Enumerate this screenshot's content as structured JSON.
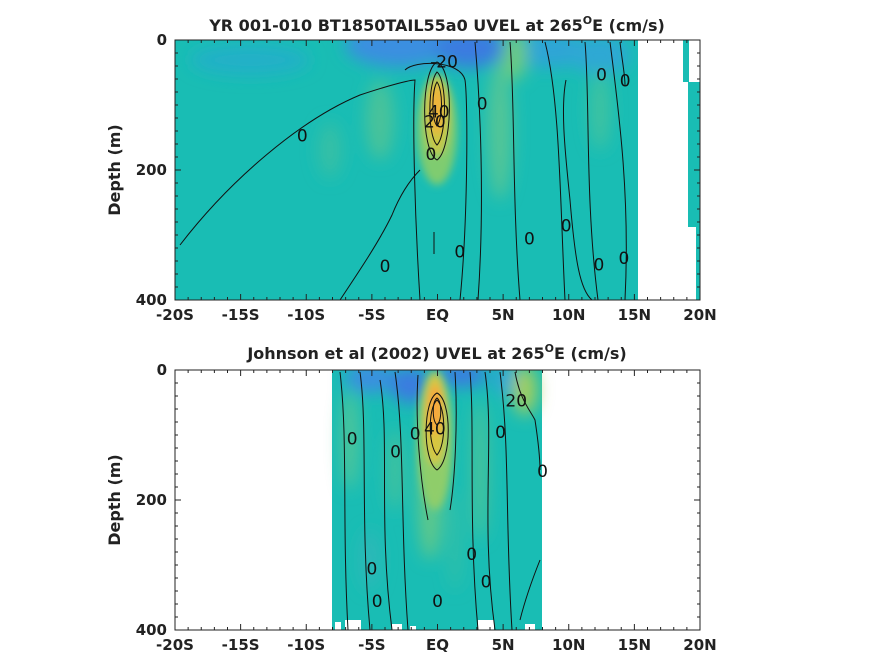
{
  "chart_data": [
    {
      "type": "contour",
      "title": "YR 001-010 BT1850TAIL55a0 UVEL at 265",
      "title_superscript": "O",
      "title_suffix": "E (cm/s)",
      "ylabel": "Depth (m)",
      "xlabel": "",
      "x_ticks": [
        "-20S",
        "-15S",
        "-10S",
        "-5S",
        "EQ",
        "5N",
        "10N",
        "15N",
        "20N"
      ],
      "x_tick_values": [
        -20,
        -15,
        -10,
        -5,
        0,
        5,
        10,
        15,
        20
      ],
      "xlim": [
        -20,
        20
      ],
      "y_ticks": [
        "0",
        "200",
        "400"
      ],
      "y_tick_values": [
        0,
        200,
        400
      ],
      "ylim": [
        0,
        400
      ],
      "y_reversed": true,
      "data_extent_x": [
        -20,
        15.3
      ],
      "contour_labels": [
        {
          "text": "-20",
          "lat": 0.5,
          "depth": 33
        },
        {
          "text": "40",
          "lat": 0.1,
          "depth": 110
        },
        {
          "text": "20",
          "lat": -0.2,
          "depth": 125
        },
        {
          "text": "0",
          "lat": -10.3,
          "depth": 147
        },
        {
          "text": "0",
          "lat": -0.5,
          "depth": 175
        },
        {
          "text": "0",
          "lat": 3.4,
          "depth": 98
        },
        {
          "text": "0",
          "lat": 12.5,
          "depth": 53
        },
        {
          "text": "0",
          "lat": 14.3,
          "depth": 62
        },
        {
          "text": "0",
          "lat": -4.0,
          "depth": 348
        },
        {
          "text": "0",
          "lat": 1.7,
          "depth": 325
        },
        {
          "text": "0",
          "lat": 7.0,
          "depth": 305
        },
        {
          "text": "0",
          "lat": 9.8,
          "depth": 285
        },
        {
          "text": "0",
          "lat": 12.3,
          "depth": 345
        },
        {
          "text": "0",
          "lat": 14.2,
          "depth": 335
        }
      ]
    },
    {
      "type": "contour",
      "title": "Johnson et al (2002) UVEL at 265",
      "title_superscript": "O",
      "title_suffix": "E (cm/s)",
      "ylabel": "Depth (m)",
      "xlabel": "",
      "x_ticks": [
        "-20S",
        "-15S",
        "-10S",
        "-5S",
        "EQ",
        "5N",
        "10N",
        "15N",
        "20N"
      ],
      "x_tick_values": [
        -20,
        -15,
        -10,
        -5,
        0,
        5,
        10,
        15,
        20
      ],
      "xlim": [
        -20,
        20
      ],
      "y_ticks": [
        "0",
        "200",
        "400"
      ],
      "y_tick_values": [
        0,
        200,
        400
      ],
      "ylim": [
        0,
        400
      ],
      "y_reversed": true,
      "data_extent_x": [
        -8,
        8
      ],
      "contour_labels": [
        {
          "text": "20",
          "lat": 6.0,
          "depth": 47
        },
        {
          "text": "40",
          "lat": -0.2,
          "depth": 90
        },
        {
          "text": "0",
          "lat": -6.5,
          "depth": 105
        },
        {
          "text": "0",
          "lat": -3.2,
          "depth": 125
        },
        {
          "text": "0",
          "lat": -1.7,
          "depth": 98
        },
        {
          "text": "0",
          "lat": 4.8,
          "depth": 95
        },
        {
          "text": "0",
          "lat": 8.0,
          "depth": 155
        },
        {
          "text": "0",
          "lat": 2.6,
          "depth": 283
        },
        {
          "text": "0",
          "lat": 3.7,
          "depth": 325
        },
        {
          "text": "0",
          "lat": -5.0,
          "depth": 305
        },
        {
          "text": "0",
          "lat": -4.6,
          "depth": 355
        },
        {
          "text": "0",
          "lat": 0.0,
          "depth": 355
        }
      ]
    }
  ],
  "colors": {
    "background_field": "#19bdb4",
    "weak_positive": "#48c39a",
    "positive": "#8fcd6b",
    "strong_positive": "#e2c53a",
    "core": "#f8a63e",
    "negative": "#2fa0d8",
    "strong_negative": "#3a7be0",
    "contour_line": "#111111",
    "axis": "#222222"
  }
}
